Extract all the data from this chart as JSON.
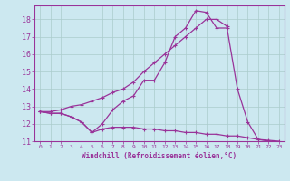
{
  "xlabel": "Windchill (Refroidissement éolien,°C)",
  "bg_color": "#cce8f0",
  "line_color": "#993399",
  "grid_color": "#aacccc",
  "xlim": [
    -0.5,
    23.5
  ],
  "ylim": [
    11,
    18.8
  ],
  "yticks": [
    11,
    12,
    13,
    14,
    15,
    16,
    17,
    18
  ],
  "xticks": [
    0,
    1,
    2,
    3,
    4,
    5,
    6,
    7,
    8,
    9,
    10,
    11,
    12,
    13,
    14,
    15,
    16,
    17,
    18,
    19,
    20,
    21,
    22,
    23
  ],
  "series": [
    {
      "x": [
        0,
        1,
        2,
        3,
        4,
        5,
        6,
        7,
        8,
        9,
        10,
        11,
        12,
        13,
        14,
        15,
        16,
        17,
        18,
        19,
        20,
        21,
        22
      ],
      "y": [
        12.7,
        12.6,
        12.6,
        12.4,
        12.1,
        11.5,
        12.0,
        12.8,
        13.3,
        13.6,
        14.5,
        14.5,
        15.5,
        17.0,
        17.5,
        18.5,
        18.4,
        17.5,
        17.5,
        14.0,
        12.1,
        11.1,
        11.0
      ]
    },
    {
      "x": [
        0,
        1,
        2,
        3,
        4,
        5,
        6,
        7,
        8,
        9,
        10,
        11,
        12,
        13,
        14,
        15,
        16,
        17,
        18
      ],
      "y": [
        12.7,
        12.7,
        12.8,
        13.0,
        13.1,
        13.3,
        13.5,
        13.8,
        14.0,
        14.4,
        15.0,
        15.5,
        16.0,
        16.5,
        17.0,
        17.5,
        18.0,
        18.0,
        17.6
      ]
    },
    {
      "x": [
        0,
        1,
        2,
        3,
        4,
        5,
        6,
        7,
        8,
        9,
        10,
        11,
        12,
        13,
        14,
        15,
        16,
        17,
        18,
        19,
        20,
        21,
        22,
        23
      ],
      "y": [
        12.7,
        12.6,
        12.6,
        12.4,
        12.1,
        11.5,
        11.7,
        11.8,
        11.8,
        11.8,
        11.7,
        11.7,
        11.6,
        11.6,
        11.5,
        11.5,
        11.4,
        11.4,
        11.3,
        11.3,
        11.2,
        11.1,
        11.05,
        11.0
      ]
    }
  ]
}
